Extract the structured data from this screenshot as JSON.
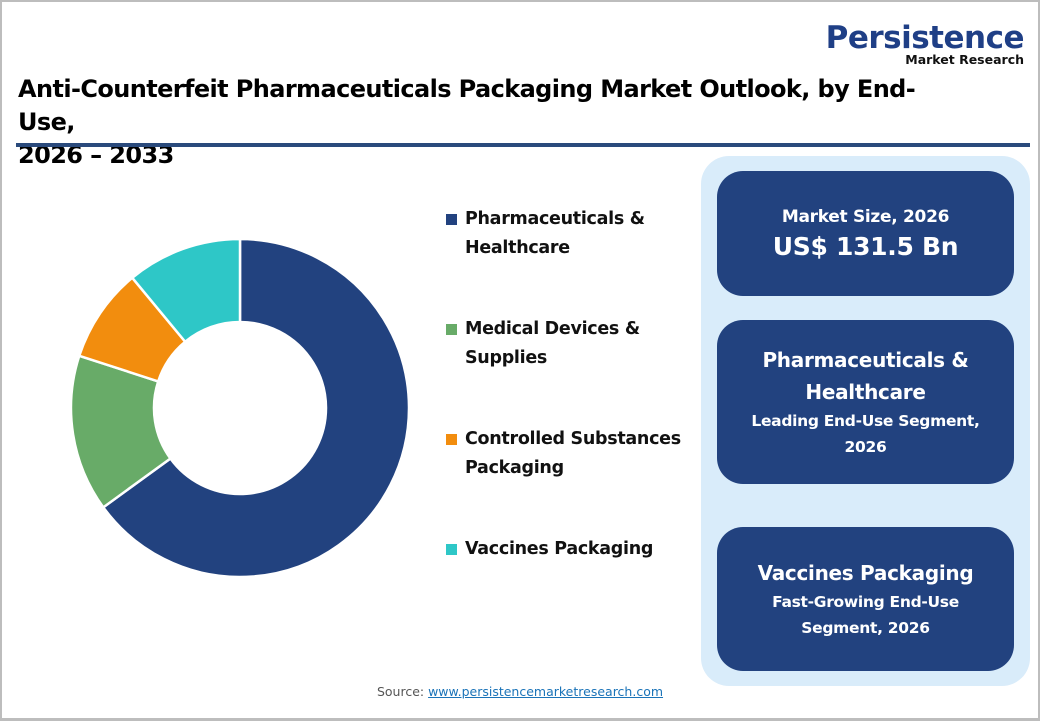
{
  "logo": {
    "main": "Persistence",
    "sub": "Market Research"
  },
  "title": {
    "line1": "Anti-Counterfeit Pharmaceuticals Packaging Market Outlook, by End-Use,",
    "line2": "2026 – 2033"
  },
  "colors": {
    "navy": "#22427f",
    "green": "#68ab68",
    "orange": "#f28d0e",
    "cyan": "#2ec7c7",
    "panel_bg": "#d9ecfa",
    "rule": "#2a4a7c"
  },
  "legend": [
    {
      "label": "Pharmaceuticals &\nHealthcare",
      "color": "#22427f"
    },
    {
      "label": "Medical Devices &\nSupplies",
      "color": "#68ab68"
    },
    {
      "label": "Controlled Substances\nPackaging",
      "color": "#f28d0e"
    },
    {
      "label": "Vaccines Packaging",
      "color": "#2ec7c7"
    }
  ],
  "cards": {
    "market_size": {
      "label": "Market Size, 2026",
      "value": "US$ 131.5 Bn"
    },
    "leading": {
      "title_line1": "Pharmaceuticals &",
      "title_line2": "Healthcare",
      "sub_line1": "Leading End-Use Segment,",
      "sub_line2": "2026"
    },
    "fast_growing": {
      "title": "Vaccines Packaging",
      "sub_line1": "Fast-Growing End-Use",
      "sub_line2": "Segment, 2026"
    }
  },
  "source": {
    "prefix": "Source: ",
    "link": "www.persistencemarketresearch.com"
  },
  "chart_data": {
    "type": "pie",
    "subtype": "donut",
    "title": "Anti-Counterfeit Pharmaceuticals Packaging Market Outlook, by End-Use, 2026 – 2033",
    "categories": [
      "Pharmaceuticals & Healthcare",
      "Medical Devices & Supplies",
      "Controlled Substances Packaging",
      "Vaccines Packaging"
    ],
    "values": [
      65,
      15,
      9,
      11
    ],
    "unit": "% share (estimated from slice angles)",
    "colors": [
      "#22427f",
      "#68ab68",
      "#f28d0e",
      "#2ec7c7"
    ],
    "start_angle": "12 o'clock, clockwise",
    "legend_position": "right",
    "data_labels": false,
    "annotations": [
      "Market Size, 2026: US$ 131.5 Bn",
      "Leading End-Use Segment, 2026: Pharmaceuticals & Healthcare",
      "Fast-Growing End-Use Segment, 2026: Vaccines Packaging"
    ]
  }
}
